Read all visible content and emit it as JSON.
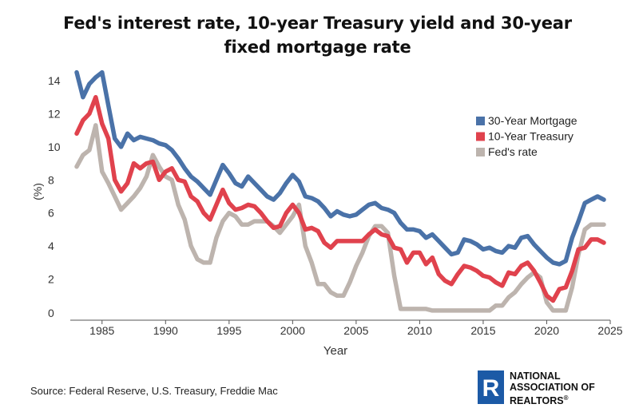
{
  "title_lines": [
    "Fed's interest rate, 10-year Treasury yield and 30-year",
    "fixed mortgage rate"
  ],
  "source": "Source: Federal Reserve, U.S. Treasury, Freddie Mac",
  "logo": {
    "line1": "NATIONAL",
    "line2": "ASSOCIATION OF",
    "line3": "REALTORS",
    "reg": "®",
    "letter": "R"
  },
  "colors": {
    "mortgage": "#4a72a8",
    "treasury": "#e0424d",
    "fed": "#bdb4ae",
    "axis": "#333333"
  },
  "chart_data": {
    "type": "line",
    "title": "Fed's interest rate, 10-year Treasury yield and 30-year fixed mortgage rate",
    "xlabel": "Year",
    "ylabel": "(%)",
    "xlim": [
      1982.5,
      2025
    ],
    "ylim": [
      0,
      14
    ],
    "x_ticks": [
      1985,
      1990,
      1995,
      2000,
      2005,
      2010,
      2015,
      2020,
      2025
    ],
    "y_ticks": [
      0,
      2,
      4,
      6,
      8,
      10,
      12,
      14
    ],
    "legend_position": "right",
    "series": [
      {
        "name": "30-Year Mortgage",
        "color": "#4a72a8",
        "x": [
          1983,
          1983.5,
          1984,
          1984.5,
          1985,
          1985.5,
          1986,
          1986.5,
          1987,
          1987.5,
          1988,
          1988.5,
          1989,
          1989.5,
          1990,
          1990.5,
          1991,
          1991.5,
          1992,
          1992.5,
          1993,
          1993.5,
          1994,
          1994.5,
          1995,
          1995.5,
          1996,
          1996.5,
          1997,
          1997.5,
          1998,
          1998.5,
          1999,
          1999.5,
          2000,
          2000.5,
          2001,
          2001.5,
          2002,
          2002.5,
          2003,
          2003.5,
          2004,
          2004.5,
          2005,
          2005.5,
          2006,
          2006.5,
          2007,
          2007.5,
          2008,
          2008.5,
          2009,
          2009.5,
          2010,
          2010.5,
          2011,
          2011.5,
          2012,
          2012.5,
          2013,
          2013.5,
          2014,
          2014.5,
          2015,
          2015.5,
          2016,
          2016.5,
          2017,
          2017.5,
          2018,
          2018.5,
          2019,
          2019.5,
          2020,
          2020.5,
          2021,
          2021.5,
          2022,
          2022.5,
          2023,
          2023.5,
          2024,
          2024.5
        ],
        "values": [
          14.5,
          13.0,
          13.8,
          14.2,
          14.5,
          12.5,
          10.5,
          10.0,
          10.8,
          10.4,
          10.6,
          10.5,
          10.4,
          10.2,
          10.1,
          9.8,
          9.3,
          8.7,
          8.2,
          7.9,
          7.5,
          7.1,
          8.0,
          8.9,
          8.4,
          7.8,
          7.6,
          8.2,
          7.8,
          7.4,
          7.0,
          6.8,
          7.2,
          7.8,
          8.3,
          7.9,
          7.0,
          6.9,
          6.7,
          6.3,
          5.8,
          6.1,
          5.9,
          5.8,
          5.9,
          6.2,
          6.5,
          6.6,
          6.3,
          6.2,
          6.0,
          5.4,
          5.0,
          5.0,
          4.9,
          4.5,
          4.7,
          4.3,
          3.9,
          3.5,
          3.6,
          4.4,
          4.3,
          4.1,
          3.8,
          3.9,
          3.7,
          3.6,
          4.0,
          3.9,
          4.5,
          4.6,
          4.1,
          3.7,
          3.3,
          3.0,
          2.9,
          3.1,
          4.5,
          5.5,
          6.6,
          6.8,
          7.0,
          6.8
        ]
      },
      {
        "name": "10-Year Treasury",
        "color": "#e0424d",
        "x": [
          1983,
          1983.5,
          1984,
          1984.5,
          1985,
          1985.5,
          1986,
          1986.5,
          1987,
          1987.5,
          1988,
          1988.5,
          1989,
          1989.5,
          1990,
          1990.5,
          1991,
          1991.5,
          1992,
          1992.5,
          1993,
          1993.5,
          1994,
          1994.5,
          1995,
          1995.5,
          1996,
          1996.5,
          1997,
          1997.5,
          1998,
          1998.5,
          1999,
          1999.5,
          2000,
          2000.5,
          2001,
          2001.5,
          2002,
          2002.5,
          2003,
          2003.5,
          2004,
          2004.5,
          2005,
          2005.5,
          2006,
          2006.5,
          2007,
          2007.5,
          2008,
          2008.5,
          2009,
          2009.5,
          2010,
          2010.5,
          2011,
          2011.5,
          2012,
          2012.5,
          2013,
          2013.5,
          2014,
          2014.5,
          2015,
          2015.5,
          2016,
          2016.5,
          2017,
          2017.5,
          2018,
          2018.5,
          2019,
          2019.5,
          2020,
          2020.5,
          2021,
          2021.5,
          2022,
          2022.5,
          2023,
          2023.5,
          2024,
          2024.5
        ],
        "values": [
          10.8,
          11.6,
          12.0,
          13.0,
          11.4,
          10.5,
          8.0,
          7.3,
          7.8,
          9.0,
          8.7,
          9.0,
          9.1,
          8.0,
          8.5,
          8.7,
          8.0,
          7.9,
          7.0,
          6.7,
          6.0,
          5.6,
          6.5,
          7.4,
          6.6,
          6.2,
          6.3,
          6.5,
          6.4,
          6.0,
          5.5,
          5.1,
          5.2,
          6.0,
          6.5,
          6.0,
          5.0,
          5.1,
          4.9,
          4.2,
          3.9,
          4.3,
          4.3,
          4.3,
          4.3,
          4.3,
          4.7,
          5.0,
          4.7,
          4.6,
          3.9,
          3.8,
          3.0,
          3.6,
          3.6,
          2.9,
          3.3,
          2.3,
          1.9,
          1.7,
          2.3,
          2.8,
          2.7,
          2.5,
          2.2,
          2.1,
          1.8,
          1.6,
          2.4,
          2.3,
          2.8,
          3.0,
          2.5,
          1.8,
          1.0,
          0.7,
          1.4,
          1.5,
          2.5,
          3.8,
          3.9,
          4.4,
          4.4,
          4.2
        ]
      },
      {
        "name": "Fed's rate",
        "color": "#bdb4ae",
        "x": [
          1983,
          1983.5,
          1984,
          1984.5,
          1985,
          1985.5,
          1986,
          1986.5,
          1987,
          1987.5,
          1988,
          1988.5,
          1989,
          1989.5,
          1990,
          1990.5,
          1991,
          1991.5,
          1992,
          1992.5,
          1993,
          1993.5,
          1994,
          1994.5,
          1995,
          1995.5,
          1996,
          1996.5,
          1997,
          1997.5,
          1998,
          1998.5,
          1999,
          1999.5,
          2000,
          2000.5,
          2001,
          2001.5,
          2002,
          2002.5,
          2003,
          2003.5,
          2004,
          2004.5,
          2005,
          2005.5,
          2006,
          2006.5,
          2007,
          2007.5,
          2008,
          2008.5,
          2009,
          2009.5,
          2010,
          2010.5,
          2011,
          2011.5,
          2012,
          2012.5,
          2013,
          2013.5,
          2014,
          2014.5,
          2015,
          2015.5,
          2016,
          2016.5,
          2017,
          2017.5,
          2018,
          2018.5,
          2019,
          2019.5,
          2020,
          2020.5,
          2021,
          2021.5,
          2022,
          2022.5,
          2023,
          2023.5,
          2024,
          2024.5
        ],
        "values": [
          8.8,
          9.5,
          9.8,
          11.3,
          8.5,
          7.8,
          7.0,
          6.2,
          6.6,
          7.0,
          7.5,
          8.2,
          9.5,
          8.8,
          8.2,
          8.0,
          6.5,
          5.6,
          4.0,
          3.2,
          3.0,
          3.0,
          4.5,
          5.5,
          6.0,
          5.8,
          5.3,
          5.3,
          5.5,
          5.5,
          5.5,
          5.2,
          4.8,
          5.3,
          5.8,
          6.5,
          4.0,
          3.0,
          1.7,
          1.7,
          1.2,
          1.0,
          1.0,
          1.8,
          2.8,
          3.6,
          4.6,
          5.2,
          5.2,
          4.8,
          2.2,
          0.2,
          0.2,
          0.2,
          0.2,
          0.2,
          0.1,
          0.1,
          0.1,
          0.1,
          0.1,
          0.1,
          0.1,
          0.1,
          0.1,
          0.1,
          0.4,
          0.4,
          0.9,
          1.2,
          1.7,
          2.1,
          2.4,
          2.1,
          0.6,
          0.1,
          0.1,
          0.1,
          1.5,
          3.5,
          5.0,
          5.3,
          5.3,
          5.3
        ]
      }
    ]
  }
}
